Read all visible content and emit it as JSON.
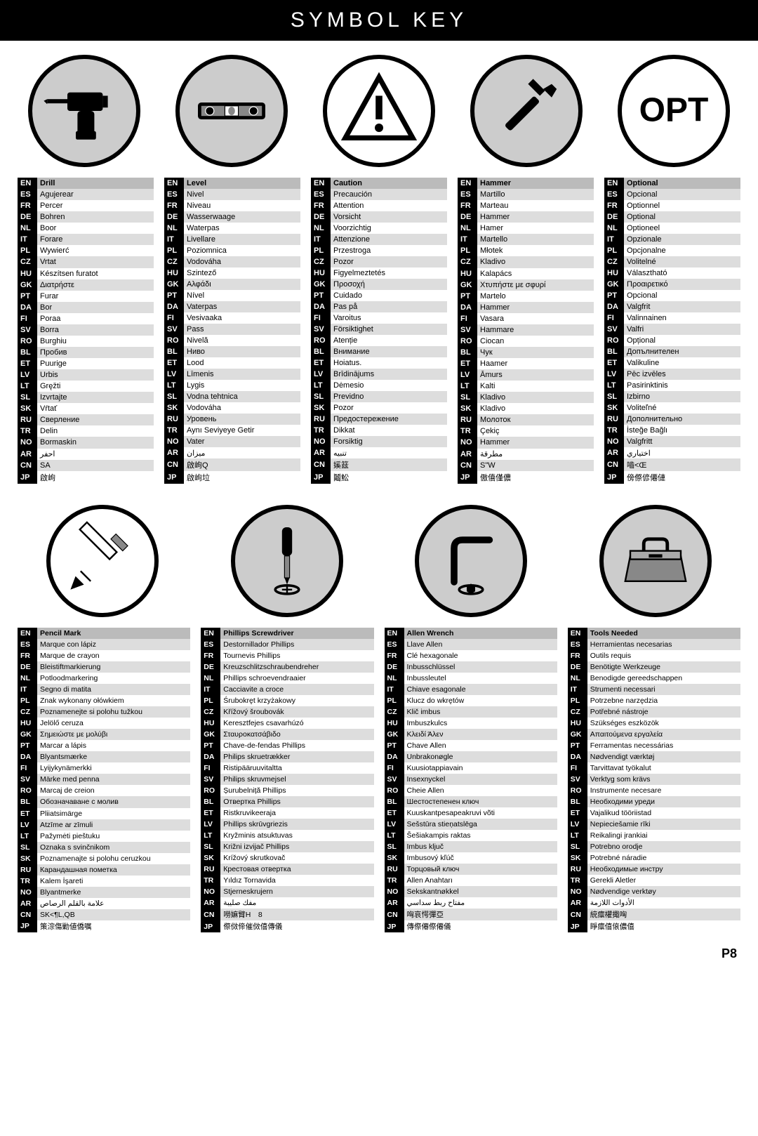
{
  "header": "SYMBOL KEY",
  "page_number": "P8",
  "langs": [
    "EN",
    "ES",
    "FR",
    "DE",
    "NL",
    "IT",
    "PL",
    "CZ",
    "HU",
    "GK",
    "PT",
    "DA",
    "FI",
    "SV",
    "RO",
    "BL",
    "ET",
    "LV",
    "LT",
    "SL",
    "SK",
    "RU",
    "TR",
    "NO",
    "AR",
    "CN",
    "JP"
  ],
  "rows": [
    {
      "columns": [
        {
          "icon": "drill",
          "bg": "gray",
          "values": [
            "Drill",
            "Agujerear",
            "Percer",
            "Bohren",
            "Boor",
            "Forare",
            "Wywierć",
            "Vrtat",
            "Készítsen furatot",
            "Διατρήστε",
            "Furar",
            "Bor",
            "Poraa",
            "Borra",
            "Burghiu",
            "Пробив",
            "Puurige",
            "Urbis",
            "Gręžti",
            "Izvrtajte",
            "Vŕtať",
            "Сверление",
            "Delin",
            "Bormaskin",
            "احفر",
            "SA",
            "啟岣"
          ]
        },
        {
          "icon": "level",
          "bg": "gray",
          "values": [
            "Level",
            "Nivel",
            "Niveau",
            "Wasserwaage",
            "Waterpas",
            "Livellare",
            "Poziomnica",
            "Vodováha",
            "Szintező",
            "Αλφάδι",
            "Nível",
            "Vaterpas",
            "Vesivaaka",
            "Pass",
            "Nivelă",
            "Ниво",
            "Lood",
            "Līmenis",
            "Lygis",
            "Vodna tehtnica",
            "Vodováha",
            "Уровень",
            "Aynı Seviyeye Getir",
            "Vater",
            "ميزان",
            "啟岣Q",
            "啟岣垃"
          ]
        },
        {
          "icon": "caution",
          "bg": "white",
          "values": [
            "Caution",
            "Precaución",
            "Attention",
            "Vorsicht",
            "Voorzichtig",
            "Attenzione",
            "Przestroga",
            "Pozor",
            "Figyelmeztetés",
            "Προσοχή",
            "Cuidado",
            "Pas på",
            "Varoitus",
            "Försiktighet",
            "Atenție",
            "Внимание",
            "Hoiatus.",
            "Brīdinājums",
            "Dėmesio",
            "Previdno",
            "Pozor",
            "Предостережение",
            "Dikkat",
            "Forsiktig",
            "تنبيه",
            "㜎䈘",
            "鬮䰸"
          ]
        },
        {
          "icon": "hammer",
          "bg": "gray",
          "values": [
            "Hammer",
            "Martillo",
            "Marteau",
            "Hammer",
            "Hamer",
            "Martello",
            "Młotek",
            "Kladivo",
            "Kalapács",
            "Χτυπήστε με σφυρί",
            "Martelo",
            "Hammer",
            "Vasara",
            "Hammare",
            "Ciocan",
            "Чук",
            "Haamer",
            "Āmurs",
            "Kalti",
            "Kladivo",
            "Kladivo",
            "Молоток",
            "Çekiç",
            "Hammer",
            "مطرقة",
            "S\"W",
            "傲僖僅儂"
          ]
        },
        {
          "icon": "optional",
          "bg": "white",
          "values": [
            "Optional",
            "Opcional",
            "Optionnel",
            "Optional",
            "Optioneel",
            "Opzionale",
            "Opcjonalne",
            "Volitelné",
            "Választható",
            "Προαιρετικό",
            "Opcional",
            "Valgfrit",
            "Valinnainen",
            "Valfri",
            "Opțional",
            "Допълнителен",
            "Valikuline",
            "Pēc izvēles",
            "Pasirinktinis",
            "Izbirno",
            "Voliteľné",
            "Дополнительно",
            "İsteğe Bağlı",
            "Valgfritt",
            "اختياري",
            "嚙<Œ",
            "傍傺偐僊僆"
          ]
        }
      ]
    },
    {
      "cols4": true,
      "columns": [
        {
          "icon": "pencil",
          "bg": "white",
          "values": [
            "Pencil Mark",
            "Marque con lápiz",
            "Marque de crayon",
            "Bleistiftmarkierung",
            "Potloodmarkering",
            "Segno di matita",
            "Znak wykonany ołówkiem",
            "Poznamenejte si polohu tužkou",
            "Jelölő ceruza",
            "Σημειώστε με μολύβι",
            "Marcar a lápis",
            "Blyantsmærke",
            "Lyijykynämerkki",
            "Märke med penna",
            "Marcaj de creion",
            "Обозначаване с молив",
            "Pliiatsimärge",
            "Atzīme ar zīmuli",
            "Pažymėti pieštuku",
            "Oznaka s svinčnikom",
            "Poznamenajte si polohu ceruzkou",
            "Карандашная пометка",
            "Kalem İşareti",
            "Blyantmerke",
            "علامة بالقلم الرصاص",
            "SK<¶L,QB",
            "策淙傷勦値僑嘱"
          ]
        },
        {
          "icon": "phillips",
          "bg": "gray",
          "values": [
            "Phillips Screwdriver",
            "Destornillador Phillips",
            "Tournevis Phillips",
            "Kreuzschlitzschraubendreher",
            "Phillips schroevendraaier",
            "Cacciavite a croce",
            "Śrubokręt krzyżakowy",
            "Křížový šroubovák",
            "Keresztfejes csavarhúzó",
            "Σταυροκατσάβιδο",
            "Chave-de-fendas Phillips",
            "Philips skruetrækker",
            "Ristipääruuvitaltta",
            "Philips skruvmejsel",
            "Șurubelniță Phillips",
            "Отвертка Phillips",
            "Ristkruvikeeraja",
            "Phillips skrūvgriezis",
            "Kryžminis atsuktuvas",
            "Križni izvijač Phillips",
            "Krížový skrutkovač",
            "Крестовая отвертка",
            "Yıldız Tornavida",
            "Stjerneskrujern",
            "مفك صليبة",
            "嘮嫲臂H　8",
            "傺傚偙催傚僖傳儀"
          ]
        },
        {
          "icon": "allen",
          "bg": "gray",
          "values": [
            "Allen Wrench",
            "Llave Allen",
            "Clé hexagonale",
            "Inbusschlüssel",
            "Inbussleutel",
            "Chiave esagonale",
            "Klucz do wkrętów",
            "Klič imbus",
            "Imbuszkulcs",
            "Κλειδί Άλεν",
            "Chave Allen",
            "Unbrakonøgle",
            "Kuusiotappiavain",
            "Insexnyckel",
            "Cheie Allen",
            "Шестостепенен ключ",
            "Kuuskantpesapeakruvi võti",
            "Sešstūra stieņatslēga",
            "Šešiakampis raktas",
            "Imbus ključ",
            "Imbusový kľúč",
            "Торцовый ключ",
            "Allen Anahtarı",
            "Sekskantnøkkel",
            "مفتاح ربط سداسي",
            "哅哀愕彈亞",
            "傳傺僊傺僊儀"
          ]
        },
        {
          "icon": "toolbox",
          "bg": "gray",
          "values": [
            "Tools Needed",
            "Herramientas necesarias",
            "Outils requis",
            "Benötigte Werkzeuge",
            "Benodigde gereedschappen",
            "Strumenti necessari",
            "Potrzebne narzędzia",
            "Potřebné nástroje",
            "Szükséges eszközök",
            "Απαιτούμενα εργαλεία",
            "Ferramentas necessárias",
            "Nødvendigt værktøj",
            "Tarvittavat työkalut",
            "Verktyg som krävs",
            "Instrumente necesare",
            "Необходими уреди",
            "Vajalikud tööriistad",
            "Nepieciešamie rīki",
            "Reikalingi įrankiai",
            "Potrebno orodje",
            "Potrebné náradie",
            "Необходимые инстру",
            "Gerekli Aletler",
            "Nødvendige verktøy",
            "الأدوات اللازمة",
            "綂癝欋擑哅",
            "睜癝僖偯儂僖"
          ]
        }
      ]
    }
  ]
}
